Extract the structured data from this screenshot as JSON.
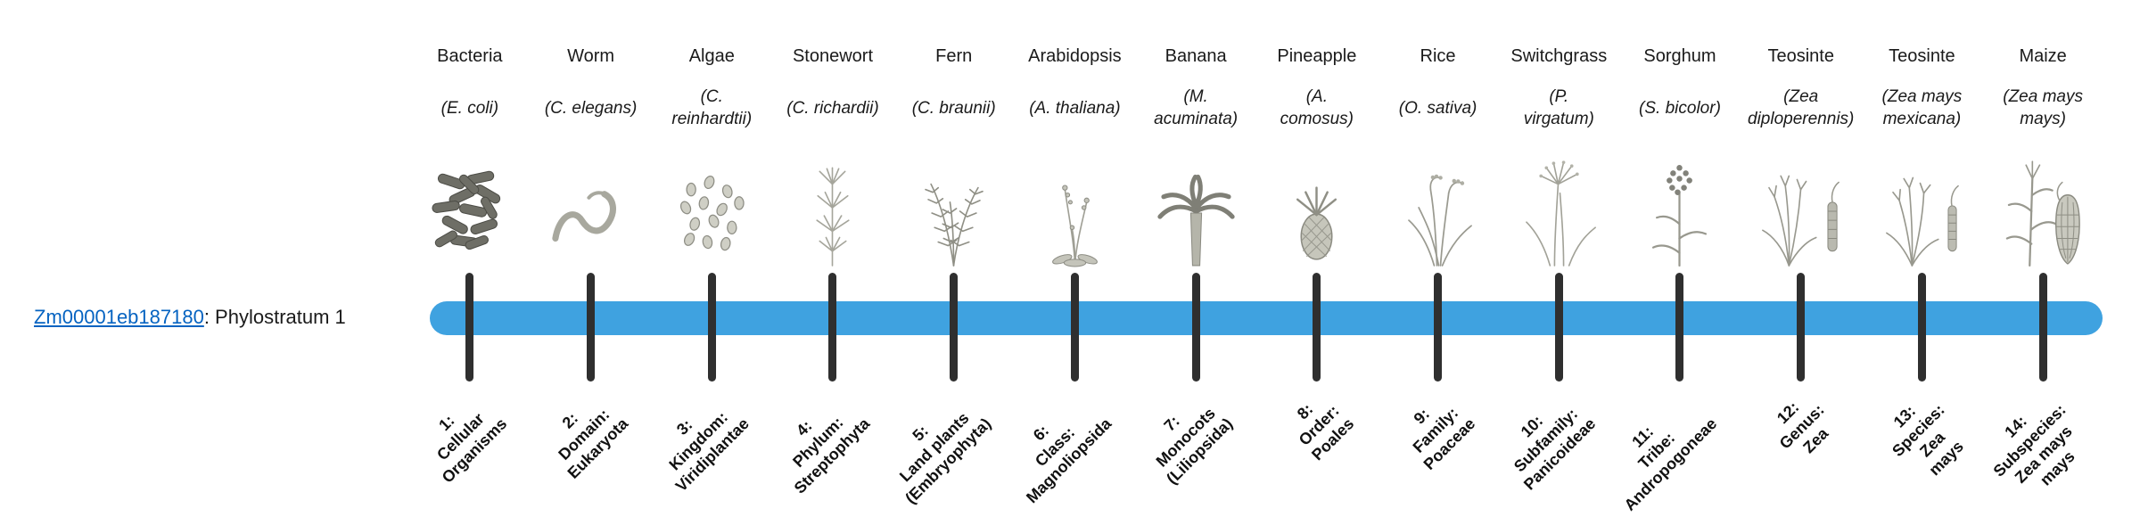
{
  "gene": {
    "id": "Zm00001eb187180",
    "suffix": ": Phylostratum 1"
  },
  "timeline": {
    "bar_color": "#3fa2e0",
    "tick_color": "#2f2f2f",
    "link_color": "#0563c1",
    "tick_count": 14
  },
  "organisms": [
    {
      "common_name": "Bacteria",
      "scientific_name_lines": [
        "(E. coli)"
      ],
      "icon": "bacteria-icon",
      "phylostratum": {
        "number": 1,
        "label_lines": [
          "1:",
          "Cellular",
          "Organisms"
        ]
      }
    },
    {
      "common_name": "Worm",
      "scientific_name_lines": [
        "(C. elegans)"
      ],
      "icon": "worm-icon",
      "phylostratum": {
        "number": 2,
        "label_lines": [
          "2:",
          "Domain:",
          "Eukaryota"
        ]
      }
    },
    {
      "common_name": "Algae",
      "scientific_name_lines": [
        "(C.",
        "reinhardtii)"
      ],
      "icon": "algae-icon",
      "phylostratum": {
        "number": 3,
        "label_lines": [
          "3:",
          "Kingdom:",
          "Viridiplantae"
        ]
      }
    },
    {
      "common_name": "Stonewort",
      "scientific_name_lines": [
        "(C. richardii)"
      ],
      "icon": "stonewort-icon",
      "phylostratum": {
        "number": 4,
        "label_lines": [
          "4:",
          "Phylum:",
          "Streptophyta"
        ]
      }
    },
    {
      "common_name": "Fern",
      "scientific_name_lines": [
        "(C. braunii)"
      ],
      "icon": "fern-icon",
      "phylostratum": {
        "number": 5,
        "label_lines": [
          "5:",
          "Land plants",
          "(Embryophyta)"
        ]
      }
    },
    {
      "common_name": "Arabidopsis",
      "scientific_name_lines": [
        "(A. thaliana)"
      ],
      "icon": "arabidopsis-icon",
      "phylostratum": {
        "number": 6,
        "label_lines": [
          "6:",
          "Class:",
          "Magnoliopsida"
        ]
      }
    },
    {
      "common_name": "Banana",
      "scientific_name_lines": [
        "(M.",
        "acuminata)"
      ],
      "icon": "banana-plant-icon",
      "phylostratum": {
        "number": 7,
        "label_lines": [
          "7:",
          "Monocots",
          "(Liliopsida)"
        ]
      }
    },
    {
      "common_name": "Pineapple",
      "scientific_name_lines": [
        "(A.",
        "comosus)"
      ],
      "icon": "pineapple-icon",
      "phylostratum": {
        "number": 8,
        "label_lines": [
          "8:",
          "Order:",
          "Poales"
        ]
      }
    },
    {
      "common_name": "Rice",
      "scientific_name_lines": [
        "(O. sativa)"
      ],
      "icon": "rice-plant-icon",
      "phylostratum": {
        "number": 9,
        "label_lines": [
          "9:",
          "Family:",
          "Poaceae"
        ]
      }
    },
    {
      "common_name": "Switchgrass",
      "scientific_name_lines": [
        "(P.",
        "virgatum)"
      ],
      "icon": "switchgrass-icon",
      "phylostratum": {
        "number": 10,
        "label_lines": [
          "10:",
          "Subfamily:",
          "Panicoideae"
        ]
      }
    },
    {
      "common_name": "Sorghum",
      "scientific_name_lines": [
        "(S. bicolor)"
      ],
      "icon": "sorghum-icon",
      "phylostratum": {
        "number": 11,
        "label_lines": [
          "11:",
          "Tribe:",
          "Andropogoneae"
        ]
      }
    },
    {
      "common_name": "Teosinte",
      "scientific_name_lines": [
        "(Zea",
        "diploperennis)"
      ],
      "icon": "teosinte-diploperennis-icon",
      "phylostratum": {
        "number": 12,
        "label_lines": [
          "12:",
          "Genus:",
          "Zea"
        ]
      }
    },
    {
      "common_name": "Teosinte",
      "scientific_name_lines": [
        "(Zea mays",
        "mexicana)"
      ],
      "icon": "teosinte-mexicana-icon",
      "phylostratum": {
        "number": 13,
        "label_lines": [
          "13:",
          "Species:",
          "Zea",
          "mays"
        ]
      }
    },
    {
      "common_name": "Maize",
      "scientific_name_lines": [
        "(Zea mays",
        "mays)"
      ],
      "icon": "maize-icon",
      "phylostratum": {
        "number": 14,
        "label_lines": [
          "14:",
          "Subspecies:",
          "Zea mays",
          "mays"
        ]
      }
    }
  ]
}
